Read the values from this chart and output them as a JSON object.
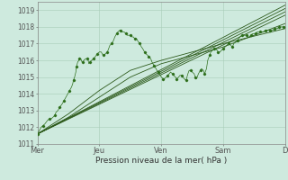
{
  "xlabel": "Pression niveau de la mer( hPa )",
  "background_color": "#ceeade",
  "grid_color": "#a8cdb8",
  "line_color": "#2d5a1b",
  "dot_color": "#2d6e1b",
  "ylim": [
    1011,
    1019.5
  ],
  "xlim": [
    0,
    4.0
  ],
  "yticks": [
    1011,
    1012,
    1013,
    1014,
    1015,
    1016,
    1017,
    1018,
    1019
  ],
  "xtick_labels": [
    "Mer",
    "Jeu",
    "Ven",
    "Sam",
    "D"
  ],
  "xtick_positions": [
    0,
    1,
    2,
    3,
    4
  ],
  "smooth_lines": [
    [
      [
        0.0,
        1011.6
      ],
      [
        4.0,
        1019.3
      ]
    ],
    [
      [
        0.0,
        1011.6
      ],
      [
        4.0,
        1019.1
      ]
    ],
    [
      [
        0.0,
        1011.6
      ],
      [
        4.0,
        1018.9
      ]
    ],
    [
      [
        0.0,
        1011.6
      ],
      [
        4.0,
        1018.7
      ]
    ],
    [
      [
        0.0,
        1011.6
      ],
      [
        0.5,
        1012.6
      ],
      [
        1.0,
        1013.8
      ],
      [
        1.5,
        1015.0
      ],
      [
        2.0,
        1015.8
      ],
      [
        2.5,
        1016.3
      ],
      [
        3.0,
        1016.8
      ],
      [
        4.0,
        1018.2
      ]
    ],
    [
      [
        0.0,
        1011.6
      ],
      [
        0.5,
        1012.8
      ],
      [
        1.0,
        1014.2
      ],
      [
        1.5,
        1015.4
      ],
      [
        2.0,
        1016.0
      ],
      [
        2.5,
        1016.5
      ],
      [
        3.0,
        1017.0
      ],
      [
        4.0,
        1017.9
      ]
    ]
  ],
  "noisy_line": [
    [
      0.0,
      1011.6
    ],
    [
      0.03,
      1011.8
    ],
    [
      0.06,
      1012.0
    ],
    [
      0.09,
      1012.1
    ],
    [
      0.12,
      1012.2
    ],
    [
      0.16,
      1012.4
    ],
    [
      0.19,
      1012.5
    ],
    [
      0.22,
      1012.5
    ],
    [
      0.25,
      1012.6
    ],
    [
      0.28,
      1012.7
    ],
    [
      0.3,
      1012.9
    ],
    [
      0.33,
      1013.0
    ],
    [
      0.36,
      1013.2
    ],
    [
      0.38,
      1013.3
    ],
    [
      0.4,
      1013.4
    ],
    [
      0.43,
      1013.6
    ],
    [
      0.46,
      1013.8
    ],
    [
      0.49,
      1014.0
    ],
    [
      0.52,
      1014.2
    ],
    [
      0.55,
      1014.4
    ],
    [
      0.57,
      1014.6
    ],
    [
      0.58,
      1014.8
    ],
    [
      0.6,
      1015.0
    ],
    [
      0.62,
      1015.3
    ],
    [
      0.63,
      1015.6
    ],
    [
      0.65,
      1015.9
    ],
    [
      0.67,
      1016.0
    ],
    [
      0.68,
      1016.1
    ],
    [
      0.7,
      1016.1
    ],
    [
      0.72,
      1015.9
    ],
    [
      0.73,
      1015.9
    ],
    [
      0.75,
      1016.0
    ],
    [
      0.78,
      1016.1
    ],
    [
      0.8,
      1016.1
    ],
    [
      0.82,
      1016.0
    ],
    [
      0.83,
      1015.8
    ],
    [
      0.85,
      1015.9
    ],
    [
      0.87,
      1016.0
    ],
    [
      0.88,
      1016.0
    ],
    [
      0.9,
      1016.1
    ],
    [
      0.93,
      1016.2
    ],
    [
      0.95,
      1016.3
    ],
    [
      0.97,
      1016.4
    ],
    [
      1.0,
      1016.5
    ],
    [
      1.03,
      1016.5
    ],
    [
      1.06,
      1016.3
    ],
    [
      1.08,
      1016.3
    ],
    [
      1.1,
      1016.4
    ],
    [
      1.13,
      1016.5
    ],
    [
      1.15,
      1016.7
    ],
    [
      1.17,
      1016.9
    ],
    [
      1.2,
      1017.0
    ],
    [
      1.23,
      1017.2
    ],
    [
      1.25,
      1017.4
    ],
    [
      1.28,
      1017.6
    ],
    [
      1.3,
      1017.7
    ],
    [
      1.33,
      1017.8
    ],
    [
      1.35,
      1017.8
    ],
    [
      1.37,
      1017.7
    ],
    [
      1.4,
      1017.7
    ],
    [
      1.43,
      1017.6
    ],
    [
      1.45,
      1017.5
    ],
    [
      1.47,
      1017.5
    ],
    [
      1.5,
      1017.5
    ],
    [
      1.53,
      1017.4
    ],
    [
      1.55,
      1017.4
    ],
    [
      1.57,
      1017.3
    ],
    [
      1.6,
      1017.3
    ],
    [
      1.63,
      1017.1
    ],
    [
      1.65,
      1017.0
    ],
    [
      1.68,
      1016.8
    ],
    [
      1.7,
      1016.7
    ],
    [
      1.73,
      1016.5
    ],
    [
      1.75,
      1016.4
    ],
    [
      1.78,
      1016.3
    ],
    [
      1.8,
      1016.2
    ],
    [
      1.83,
      1016.1
    ],
    [
      1.85,
      1015.9
    ],
    [
      1.88,
      1015.7
    ],
    [
      1.9,
      1015.6
    ],
    [
      1.93,
      1015.4
    ],
    [
      1.95,
      1015.3
    ],
    [
      1.97,
      1015.2
    ],
    [
      2.0,
      1015.0
    ],
    [
      2.03,
      1014.9
    ],
    [
      2.05,
      1014.9
    ],
    [
      2.08,
      1015.0
    ],
    [
      2.1,
      1015.1
    ],
    [
      2.13,
      1015.2
    ],
    [
      2.15,
      1015.3
    ],
    [
      2.18,
      1015.2
    ],
    [
      2.2,
      1015.1
    ],
    [
      2.23,
      1015.0
    ],
    [
      2.25,
      1014.9
    ],
    [
      2.28,
      1015.0
    ],
    [
      2.3,
      1015.1
    ],
    [
      2.33,
      1015.1
    ],
    [
      2.35,
      1015.0
    ],
    [
      2.37,
      1014.9
    ],
    [
      2.4,
      1014.8
    ],
    [
      2.43,
      1015.2
    ],
    [
      2.45,
      1015.4
    ],
    [
      2.47,
      1015.4
    ],
    [
      2.5,
      1015.3
    ],
    [
      2.53,
      1015.2
    ],
    [
      2.55,
      1015.0
    ],
    [
      2.57,
      1014.9
    ],
    [
      2.6,
      1015.2
    ],
    [
      2.63,
      1015.4
    ],
    [
      2.65,
      1015.5
    ],
    [
      2.68,
      1015.4
    ],
    [
      2.7,
      1015.2
    ],
    [
      2.73,
      1015.5
    ],
    [
      2.75,
      1016.0
    ],
    [
      2.78,
      1016.3
    ],
    [
      2.8,
      1016.5
    ],
    [
      2.83,
      1016.6
    ],
    [
      2.85,
      1016.7
    ],
    [
      2.88,
      1016.7
    ],
    [
      2.9,
      1016.6
    ],
    [
      2.92,
      1016.5
    ],
    [
      2.95,
      1016.5
    ],
    [
      2.97,
      1016.6
    ],
    [
      3.0,
      1016.7
    ],
    [
      3.03,
      1016.8
    ],
    [
      3.06,
      1016.9
    ],
    [
      3.08,
      1017.0
    ],
    [
      3.1,
      1017.0
    ],
    [
      3.12,
      1016.9
    ],
    [
      3.15,
      1016.8
    ],
    [
      3.17,
      1017.0
    ],
    [
      3.2,
      1017.1
    ],
    [
      3.23,
      1017.2
    ],
    [
      3.25,
      1017.3
    ],
    [
      3.27,
      1017.4
    ],
    [
      3.3,
      1017.5
    ],
    [
      3.33,
      1017.5
    ],
    [
      3.35,
      1017.5
    ],
    [
      3.38,
      1017.5
    ],
    [
      3.4,
      1017.4
    ],
    [
      3.42,
      1017.4
    ],
    [
      3.45,
      1017.5
    ],
    [
      3.48,
      1017.6
    ],
    [
      3.5,
      1017.6
    ],
    [
      3.53,
      1017.6
    ],
    [
      3.55,
      1017.7
    ],
    [
      3.58,
      1017.7
    ],
    [
      3.6,
      1017.7
    ],
    [
      3.63,
      1017.7
    ],
    [
      3.65,
      1017.7
    ],
    [
      3.68,
      1017.8
    ],
    [
      3.7,
      1017.8
    ],
    [
      3.73,
      1017.8
    ],
    [
      3.75,
      1017.8
    ],
    [
      3.78,
      1017.8
    ],
    [
      3.8,
      1017.8
    ],
    [
      3.83,
      1017.9
    ],
    [
      3.85,
      1017.9
    ],
    [
      3.88,
      1017.9
    ],
    [
      3.9,
      1018.0
    ],
    [
      3.93,
      1018.0
    ],
    [
      3.95,
      1018.0
    ],
    [
      3.97,
      1018.0
    ],
    [
      4.0,
      1018.0
    ]
  ]
}
